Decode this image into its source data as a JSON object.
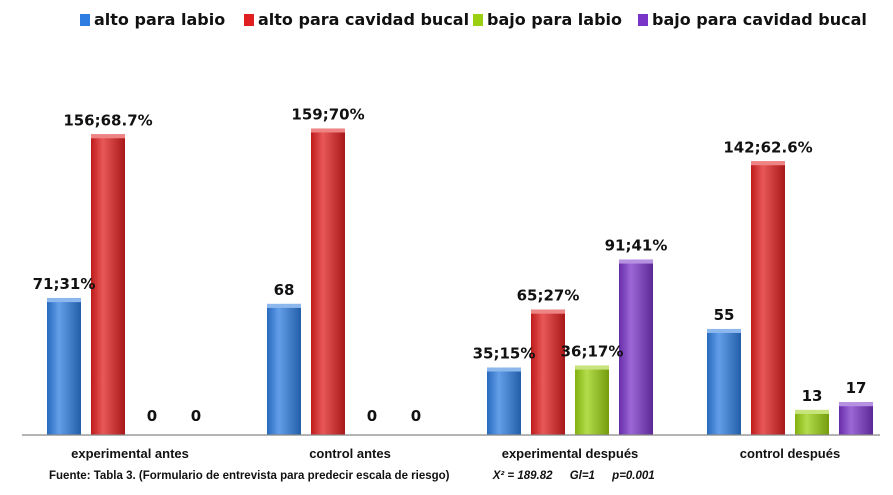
{
  "chart_data": {
    "type": "bar",
    "categories": [
      "experimental antes",
      "control antes",
      "experimental después",
      "control después"
    ],
    "series": [
      {
        "name": "alto para labio",
        "color": "#2f7de0",
        "values": [
          71,
          68,
          35,
          55
        ],
        "labels": [
          "71;31%",
          "68",
          "35;15%",
          "55"
        ]
      },
      {
        "name": "alto para cavidad bucal",
        "color": "#e02020",
        "values": [
          156,
          159,
          65,
          142
        ],
        "labels": [
          "156;68.7%",
          "159;70%",
          "65;27%",
          "142;62.6%"
        ]
      },
      {
        "name": "bajo para labio",
        "color": "#9ad010",
        "values": [
          0,
          0,
          36,
          13
        ],
        "labels": [
          "0",
          "0",
          "36;17%",
          "13"
        ]
      },
      {
        "name": "bajo para cavidad bucal",
        "color": "#7a35c8",
        "values": [
          0,
          0,
          91,
          17
        ],
        "labels": [
          "0",
          "0",
          "91;41%",
          "17"
        ]
      }
    ],
    "ylim": [
      0,
      180
    ],
    "grid": false,
    "legend_position": "top"
  },
  "footer": {
    "source": "Fuente: Tabla 3. (Formulario de entrevista para predecir escala de riesgo)",
    "chi_square": "X² = 189.82",
    "df": "Gl=1",
    "p_value": "p=0.001"
  }
}
